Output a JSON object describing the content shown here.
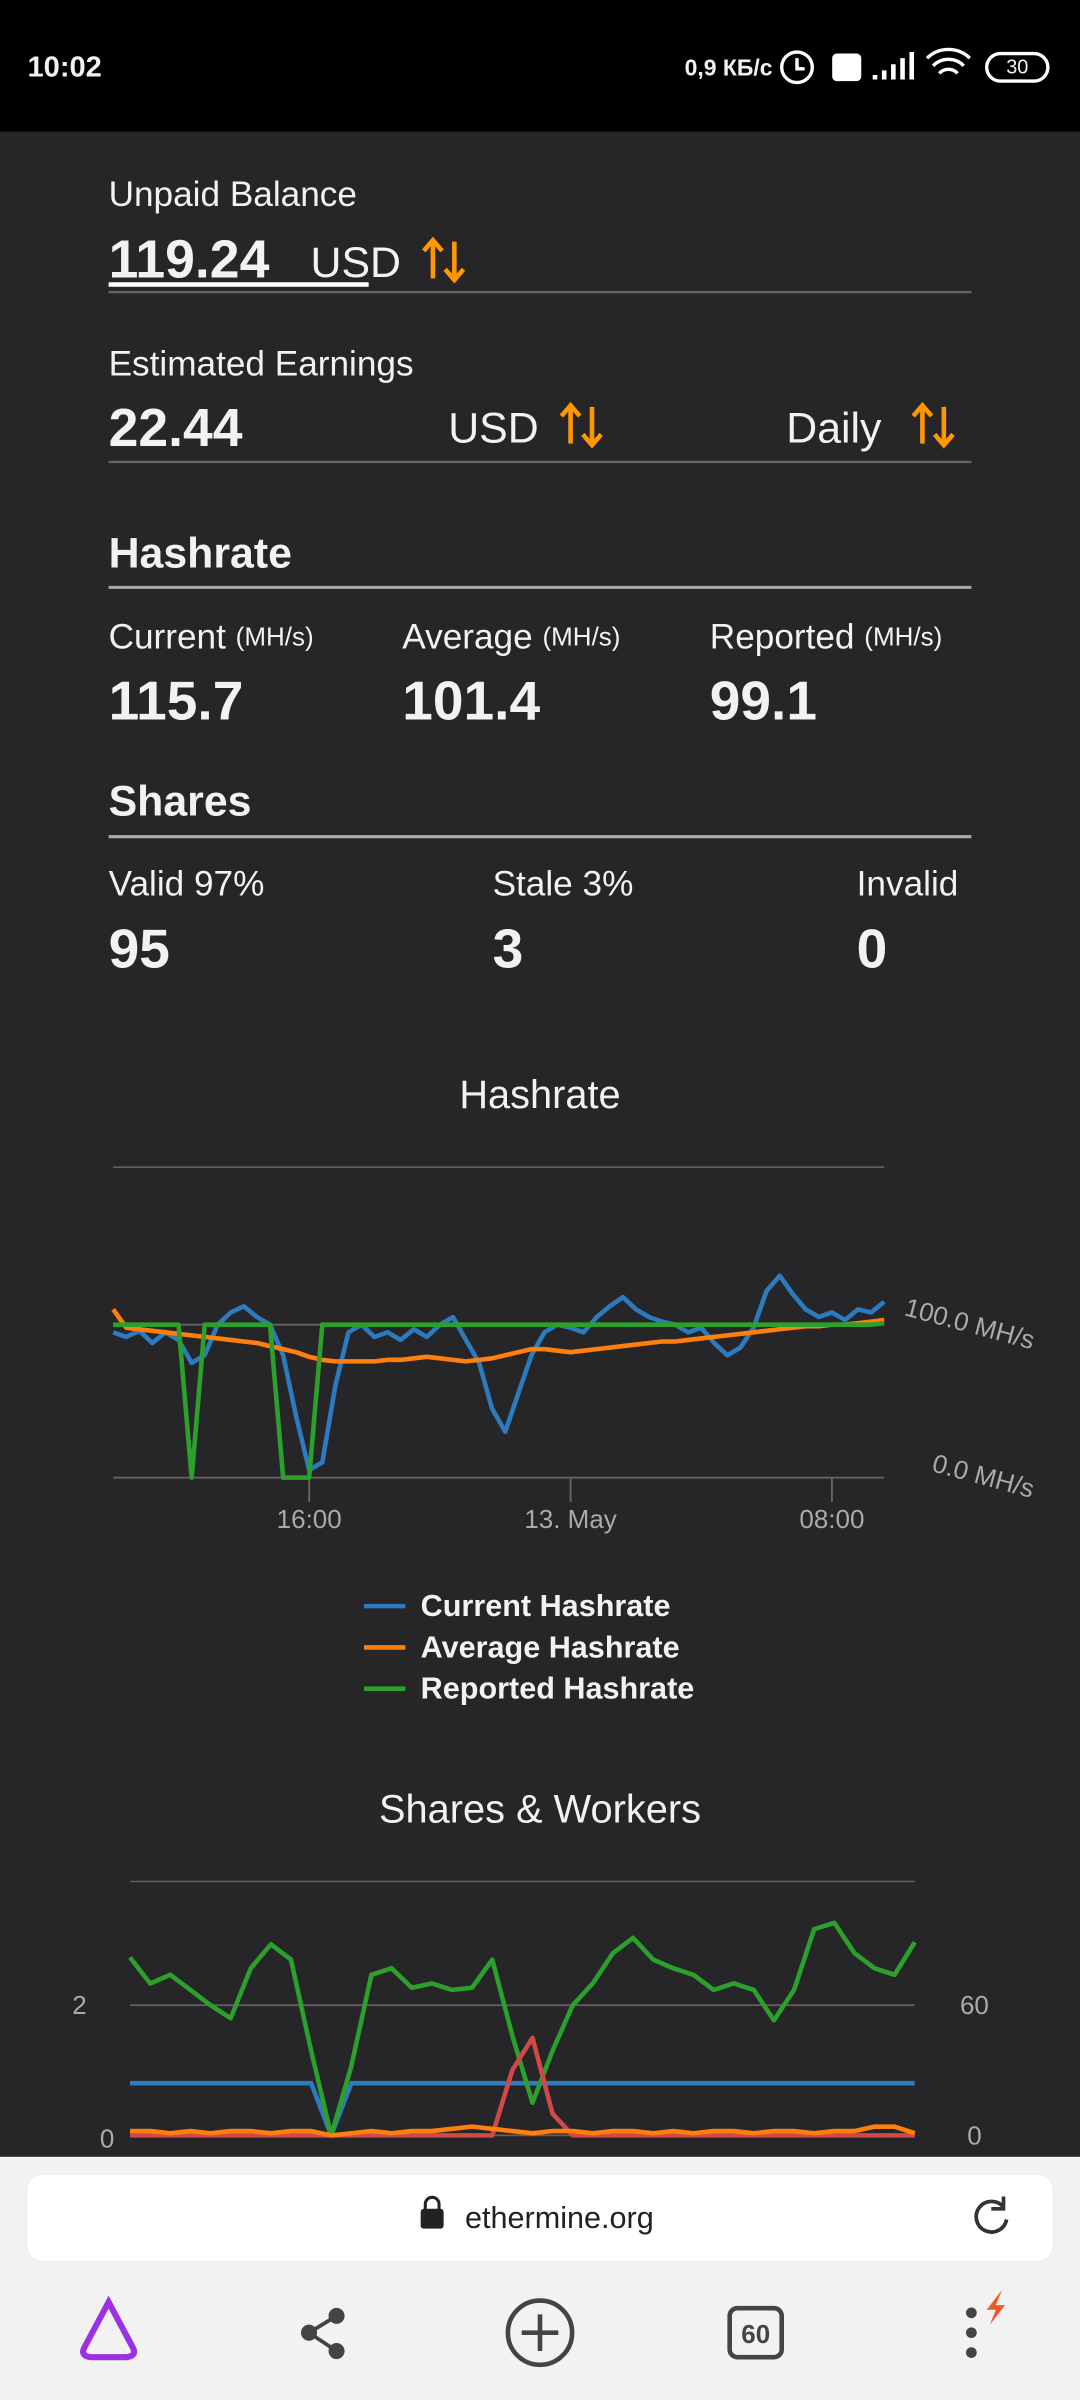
{
  "status_bar": {
    "time": "10:02",
    "speed": "0,9 КБ/с",
    "battery": "30"
  },
  "unpaid": {
    "label": "Unpaid Balance",
    "value": 119.24,
    "unit": "USD"
  },
  "estimated": {
    "label": "Estimated Earnings",
    "value": 22.44,
    "unit": "USD",
    "period": "Daily"
  },
  "hashrate": {
    "title": "Hashrate",
    "stats": [
      {
        "label": "Current",
        "unit": "(MH/s)",
        "value": 115.7
      },
      {
        "label": "Average",
        "unit": "(MH/s)",
        "value": 101.4
      },
      {
        "label": "Reported",
        "unit": "(MH/s)",
        "value": 99.1
      }
    ]
  },
  "shares": {
    "title": "Shares",
    "stats": [
      {
        "label": "Valid 97%",
        "value": 95
      },
      {
        "label": "Stale 3%",
        "value": 3
      },
      {
        "label": "Invalid",
        "value": 0
      }
    ]
  },
  "charts": [
    {
      "type": "line",
      "title": "Hashrate",
      "xlim": [
        0,
        59
      ],
      "ylim": [
        0,
        203
      ],
      "grid": true,
      "xticks": [
        {
          "value": 15,
          "label": "16:00"
        },
        {
          "value": 35,
          "label": "13. May"
        },
        {
          "value": 55,
          "label": "08:00"
        }
      ],
      "yticks": [
        {
          "value": 0,
          "label": "0.0 MH/s"
        },
        {
          "value": 100,
          "label": "100.0 MH/s"
        }
      ],
      "series": [
        {
          "name": "Current Hashrate",
          "color": "#2c7bbf",
          "values": [
            95,
            92,
            96,
            88,
            95,
            90,
            75,
            80,
            100,
            108,
            112,
            105,
            100,
            80,
            40,
            5,
            10,
            60,
            95,
            100,
            92,
            95,
            90,
            97,
            92,
            100,
            105,
            90,
            75,
            45,
            30,
            55,
            80,
            95,
            100,
            98,
            95,
            105,
            112,
            118,
            110,
            105,
            102,
            100,
            95,
            98,
            88,
            80,
            85,
            98,
            122,
            132,
            120,
            110,
            105,
            108,
            103,
            110,
            108,
            115
          ]
        },
        {
          "name": "Average Hashrate",
          "color": "#ff7f0e",
          "values": [
            110,
            98,
            97,
            96,
            95,
            94,
            93,
            92,
            91,
            90,
            89,
            88,
            86,
            84,
            82,
            79,
            77,
            76,
            76,
            76,
            76,
            77,
            77,
            78,
            79,
            78,
            77,
            76,
            77,
            78,
            80,
            82,
            84,
            84,
            83,
            82,
            83,
            84,
            85,
            86,
            87,
            88,
            89,
            89,
            90,
            91,
            92,
            93,
            94,
            95,
            96,
            97,
            98,
            99,
            99,
            100,
            100,
            101,
            102,
            103
          ]
        },
        {
          "name": "Reported Hashrate",
          "color": "#2ca02c",
          "values": [
            100,
            100,
            100,
            100,
            100,
            100,
            0,
            100,
            100,
            100,
            100,
            100,
            100,
            0,
            0,
            0,
            100,
            100,
            100,
            100,
            100,
            100,
            100,
            100,
            100,
            100,
            100,
            100,
            100,
            100,
            100,
            100,
            100,
            100,
            100,
            100,
            100,
            100,
            100,
            100,
            100,
            100,
            100,
            100,
            100,
            100,
            100,
            100,
            100,
            100,
            100,
            100,
            100,
            100,
            100,
            100,
            100,
            100,
            100,
            101
          ]
        }
      ]
    },
    {
      "type": "line",
      "title": "Shares & Workers",
      "xlim": [
        0,
        39
      ],
      "ylim": [
        0,
        3.9
      ],
      "y2lim": [
        0,
        117
      ],
      "grid": true,
      "yticks": [
        0,
        2
      ],
      "y2ticks": [
        0,
        60
      ],
      "series": [
        {
          "color": "#2c7bbf",
          "values": [
            0.8,
            0.8,
            0.8,
            0.8,
            0.8,
            0.8,
            0.8,
            0.8,
            0.8,
            0.8,
            0,
            0.8,
            0.8,
            0.8,
            0.8,
            0.8,
            0.8,
            0.8,
            0.8,
            0.8,
            0.8,
            0.8,
            0.8,
            0.8,
            0.8,
            0.8,
            0.8,
            0.8,
            0.8,
            0.8,
            0.8,
            0.8,
            0.8,
            0.8,
            0.8,
            0.8,
            0.8,
            0.8,
            0.8,
            0.8
          ]
        },
        {
          "color": "#2ca02c",
          "axis": "y2",
          "values": [
            82,
            70,
            74,
            67,
            60,
            54,
            77,
            88,
            81,
            39,
            0,
            32,
            74,
            77,
            68,
            70,
            67,
            68,
            81,
            46,
            15,
            39,
            60,
            70,
            84,
            91,
            81,
            77,
            74,
            67,
            70,
            67,
            53,
            67,
            95,
            98,
            84,
            77,
            74,
            89
          ]
        },
        {
          "color": "#d04848",
          "axis": "y2",
          "values": [
            0,
            0,
            0,
            0,
            0,
            0,
            0,
            0,
            0,
            0,
            0,
            0,
            0,
            0,
            0,
            0,
            0,
            0,
            0,
            30,
            45,
            10,
            0,
            0,
            0,
            0,
            0,
            0,
            0,
            0,
            0,
            0,
            0,
            0,
            0,
            0,
            0,
            0,
            0,
            0
          ]
        },
        {
          "color": "#ff7f0e",
          "axis": "y2",
          "values": [
            2,
            2,
            1,
            2,
            1,
            2,
            2,
            1,
            2,
            2,
            0,
            1,
            2,
            1,
            2,
            2,
            3,
            4,
            3,
            2,
            1,
            2,
            2,
            1,
            2,
            2,
            1,
            2,
            1,
            2,
            2,
            1,
            2,
            2,
            1,
            2,
            2,
            4,
            4,
            1
          ]
        }
      ]
    }
  ],
  "browser": {
    "url": "ethermine.org",
    "tabs": "60"
  }
}
